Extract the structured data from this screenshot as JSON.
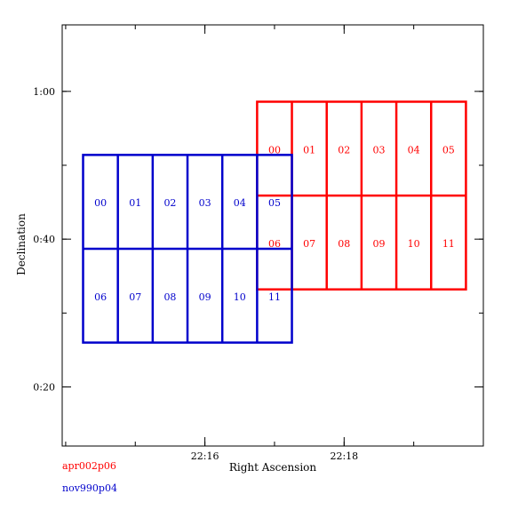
{
  "axes": {
    "xlabel": "Right Ascension",
    "ylabel": "Declination",
    "x_ticks": [
      {
        "label": "22:16",
        "value": 2.0
      },
      {
        "label": "22:18",
        "value": 4.0
      }
    ],
    "y_ticks": [
      {
        "label": "1:00",
        "value": 60
      },
      {
        "label": "0:40",
        "value": 40
      },
      {
        "label": "0:20",
        "value": 20
      }
    ],
    "xlim": [
      -0.05,
      6.0
    ],
    "ylim": [
      12,
      69
    ],
    "x_minor_step": 1.0,
    "y_minor_step": 10
  },
  "pointings": [
    {
      "name": "apr002p06",
      "color": "#ff0000",
      "ra_min": 2.75,
      "ra_max": 5.75,
      "dec_max": 58.6,
      "dec_mid": 45.9,
      "chip_labels": [
        {
          "id": "00",
          "row": 0,
          "col": 0
        },
        {
          "id": "01",
          "row": 0,
          "col": 1
        },
        {
          "id": "02",
          "row": 0,
          "col": 2
        },
        {
          "id": "03",
          "row": 0,
          "col": 3
        },
        {
          "id": "04",
          "row": 0,
          "col": 4
        },
        {
          "id": "05",
          "row": 0,
          "col": 5
        },
        {
          "id": "06",
          "row": 1,
          "col": 0
        },
        {
          "id": "07",
          "row": 1,
          "col": 1
        },
        {
          "id": "08",
          "row": 1,
          "col": 2
        },
        {
          "id": "09",
          "row": 1,
          "col": 3
        },
        {
          "id": "10",
          "row": 1,
          "col": 4
        },
        {
          "id": "11",
          "row": 1,
          "col": 5
        }
      ]
    },
    {
      "name": "nov990p04",
      "color": "#0000cc",
      "ra_min": 0.25,
      "ra_max": 3.25,
      "dec_max": 51.4,
      "dec_mid": 38.7,
      "chip_labels": [
        {
          "id": "00",
          "row": 0,
          "col": 0
        },
        {
          "id": "01",
          "row": 0,
          "col": 1
        },
        {
          "id": "02",
          "row": 0,
          "col": 2
        },
        {
          "id": "03",
          "row": 0,
          "col": 3
        },
        {
          "id": "04",
          "row": 0,
          "col": 4
        },
        {
          "id": "05",
          "row": 0,
          "col": 5
        },
        {
          "id": "06",
          "row": 1,
          "col": 0
        },
        {
          "id": "07",
          "row": 1,
          "col": 1
        },
        {
          "id": "08",
          "row": 1,
          "col": 2
        },
        {
          "id": "09",
          "row": 1,
          "col": 3
        },
        {
          "id": "10",
          "row": 1,
          "col": 4
        },
        {
          "id": "11",
          "row": 1,
          "col": 5
        }
      ]
    }
  ],
  "legend": {
    "entries": [
      {
        "name": "apr002p06",
        "color": "#ff0000"
      },
      {
        "name": "nov990p04",
        "color": "#0000cc"
      }
    ]
  }
}
